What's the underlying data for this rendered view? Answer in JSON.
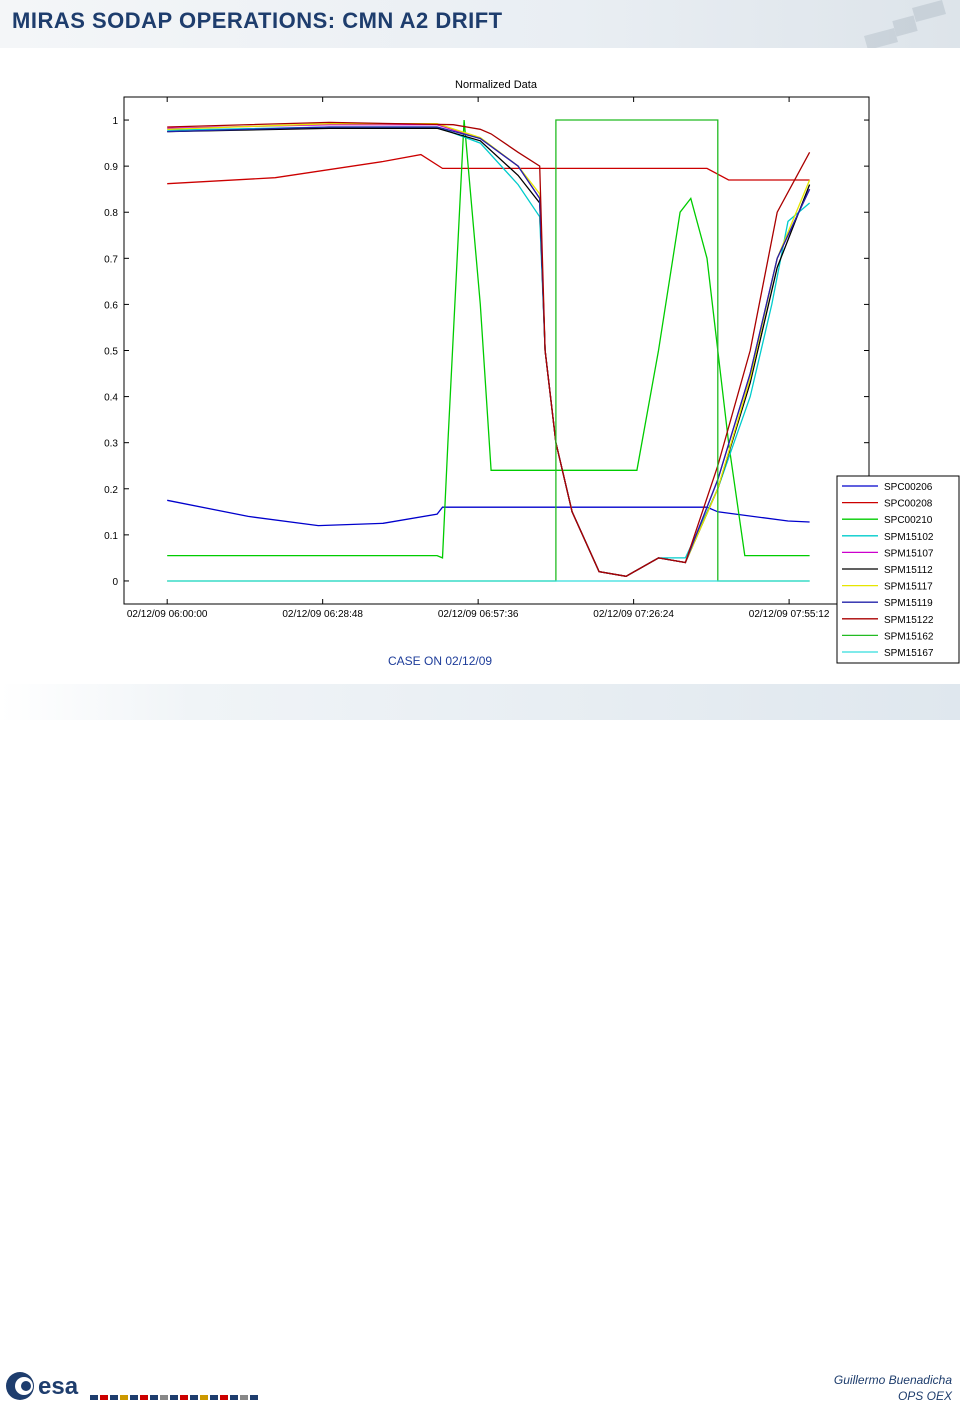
{
  "slide": {
    "title": "MIRAS SODAP OPERATIONS: CMN A2 DRIFT",
    "case_label": "CASE ON 02/12/09",
    "author": "Guillermo Buenadicha",
    "department": "OPS OEX",
    "logo_text": "esa"
  },
  "chart_data": {
    "type": "line",
    "title": "Normalized Data",
    "xlabel": "",
    "ylabel": "",
    "ylim": [
      -0.05,
      1.05
    ],
    "xlim": [
      "02/12/09 05:52:00",
      "02/12/09 08:10:00"
    ],
    "xticks": [
      "02/12/09 06:00:00",
      "02/12/09 06:28:48",
      "02/12/09 06:57:36",
      "02/12/09 07:26:24",
      "02/12/09 07:55:12"
    ],
    "yticks": [
      "0",
      "0.1",
      "0.2",
      "0.3",
      "0.4",
      "0.5",
      "0.6",
      "0.7",
      "0.8",
      "0.9",
      "1"
    ],
    "grid": false,
    "legend_position": "bottom-right",
    "series": [
      {
        "name": "SPC00206",
        "color": "#0000cc",
        "points": [
          [
            "06:00:00",
            0.175
          ],
          [
            "06:15:00",
            0.14
          ],
          [
            "06:28:00",
            0.12
          ],
          [
            "06:40:00",
            0.125
          ],
          [
            "06:50:00",
            0.145
          ],
          [
            "06:51:00",
            0.16
          ],
          [
            "07:40:00",
            0.16
          ],
          [
            "07:42:00",
            0.15
          ],
          [
            "07:55:00",
            0.13
          ],
          [
            "07:59:00",
            0.128
          ]
        ]
      },
      {
        "name": "SPC00208",
        "color": "#cc0000",
        "points": [
          [
            "06:00:00",
            0.862
          ],
          [
            "06:20:00",
            0.875
          ],
          [
            "06:40:00",
            0.91
          ],
          [
            "06:47:00",
            0.925
          ],
          [
            "06:51:00",
            0.895
          ],
          [
            "07:00:00",
            0.895
          ],
          [
            "07:20:00",
            0.895
          ],
          [
            "07:40:00",
            0.895
          ],
          [
            "07:44:00",
            0.87
          ],
          [
            "07:59:00",
            0.87
          ]
        ]
      },
      {
        "name": "SPC00210",
        "color": "#00cc00",
        "points": [
          [
            "06:00:00",
            0.055
          ],
          [
            "06:30:00",
            0.055
          ],
          [
            "06:50:00",
            0.055
          ],
          [
            "06:51:00",
            0.05
          ],
          [
            "06:52:00",
            0.3
          ],
          [
            "06:55:00",
            1.0
          ],
          [
            "06:58:00",
            0.6
          ],
          [
            "07:00:00",
            0.24
          ],
          [
            "07:15:00",
            0.24
          ],
          [
            "07:27:00",
            0.24
          ],
          [
            "07:31:00",
            0.5
          ],
          [
            "07:35:00",
            0.8
          ],
          [
            "07:37:00",
            0.83
          ],
          [
            "07:40:00",
            0.7
          ],
          [
            "07:44:00",
            0.3
          ],
          [
            "07:47:00",
            0.055
          ],
          [
            "07:59:00",
            0.055
          ]
        ]
      },
      {
        "name": "SPM15102",
        "color": "#00cccc",
        "points": [
          [
            "06:00:00",
            0.978
          ],
          [
            "06:30:00",
            0.985
          ],
          [
            "06:50:00",
            0.985
          ],
          [
            "06:58:00",
            0.95
          ],
          [
            "07:05:00",
            0.86
          ],
          [
            "07:09:00",
            0.79
          ],
          [
            "07:10:00",
            0.5
          ],
          [
            "07:12:00",
            0.3
          ],
          [
            "07:15:00",
            0.15
          ],
          [
            "07:20:00",
            0.02
          ],
          [
            "07:25:00",
            0.01
          ],
          [
            "07:31:00",
            0.05
          ],
          [
            "07:36:00",
            0.05
          ],
          [
            "07:42:00",
            0.2
          ],
          [
            "07:48:00",
            0.4
          ],
          [
            "07:52:00",
            0.6
          ],
          [
            "07:55:00",
            0.78
          ],
          [
            "07:59:00",
            0.82
          ]
        ]
      },
      {
        "name": "SPM15107",
        "color": "#cc00cc",
        "points": [
          [
            "06:00:00",
            0.982
          ],
          [
            "06:30:00",
            0.99
          ],
          [
            "06:50:00",
            0.99
          ],
          [
            "06:58:00",
            0.96
          ],
          [
            "07:05:00",
            0.9
          ],
          [
            "07:09:00",
            0.83
          ],
          [
            "07:10:00",
            0.5
          ],
          [
            "07:12:00",
            0.3
          ],
          [
            "07:15:00",
            0.15
          ],
          [
            "07:20:00",
            0.02
          ],
          [
            "07:25:00",
            0.01
          ],
          [
            "07:31:00",
            0.05
          ],
          [
            "07:36:00",
            0.04
          ],
          [
            "07:42:00",
            0.22
          ],
          [
            "07:48:00",
            0.45
          ],
          [
            "07:53:00",
            0.7
          ],
          [
            "07:59:00",
            0.85
          ]
        ]
      },
      {
        "name": "SPM15112",
        "color": "#000000",
        "points": [
          [
            "06:00:00",
            0.975
          ],
          [
            "06:30:00",
            0.982
          ],
          [
            "06:50:00",
            0.982
          ],
          [
            "06:58:00",
            0.955
          ],
          [
            "07:05:00",
            0.88
          ],
          [
            "07:09:00",
            0.82
          ],
          [
            "07:10:00",
            0.5
          ],
          [
            "07:12:00",
            0.3
          ],
          [
            "07:15:00",
            0.15
          ],
          [
            "07:20:00",
            0.02
          ],
          [
            "07:25:00",
            0.01
          ],
          [
            "07:31:00",
            0.05
          ],
          [
            "07:36:00",
            0.04
          ],
          [
            "07:42:00",
            0.2
          ],
          [
            "07:48:00",
            0.43
          ],
          [
            "07:53:00",
            0.68
          ],
          [
            "07:59:00",
            0.86
          ]
        ]
      },
      {
        "name": "SPM15117",
        "color": "#e6e600",
        "points": [
          [
            "06:00:00",
            0.98
          ],
          [
            "06:30:00",
            0.992
          ],
          [
            "06:50:00",
            0.992
          ],
          [
            "06:58:00",
            0.962
          ],
          [
            "07:05:00",
            0.9
          ],
          [
            "07:09:00",
            0.84
          ],
          [
            "07:10:00",
            0.5
          ],
          [
            "07:12:00",
            0.3
          ],
          [
            "07:15:00",
            0.15
          ],
          [
            "07:20:00",
            0.02
          ],
          [
            "07:25:00",
            0.01
          ],
          [
            "07:31:00",
            0.05
          ],
          [
            "07:36:00",
            0.04
          ],
          [
            "07:42:00",
            0.2
          ],
          [
            "07:48:00",
            0.44
          ],
          [
            "07:53:00",
            0.7
          ],
          [
            "07:59:00",
            0.87
          ]
        ]
      },
      {
        "name": "SPM15119",
        "color": "#2222aa",
        "points": [
          [
            "06:00:00",
            0.975
          ],
          [
            "06:30:00",
            0.985
          ],
          [
            "06:50:00",
            0.985
          ],
          [
            "06:58:00",
            0.96
          ],
          [
            "07:05:00",
            0.9
          ],
          [
            "07:09:00",
            0.83
          ],
          [
            "07:10:00",
            0.5
          ],
          [
            "07:12:00",
            0.3
          ],
          [
            "07:15:00",
            0.15
          ],
          [
            "07:20:00",
            0.02
          ],
          [
            "07:25:00",
            0.01
          ],
          [
            "07:31:00",
            0.05
          ],
          [
            "07:36:00",
            0.04
          ],
          [
            "07:42:00",
            0.22
          ],
          [
            "07:48:00",
            0.45
          ],
          [
            "07:53:00",
            0.7
          ],
          [
            "07:59:00",
            0.85
          ]
        ]
      },
      {
        "name": "SPM15122",
        "color": "#aa0000",
        "points": [
          [
            "06:00:00",
            0.985
          ],
          [
            "06:30:00",
            0.995
          ],
          [
            "06:53:00",
            0.99
          ],
          [
            "06:58:00",
            0.98
          ],
          [
            "07:00:00",
            0.97
          ],
          [
            "07:05:00",
            0.93
          ],
          [
            "07:09:00",
            0.9
          ],
          [
            "07:10:00",
            0.5
          ],
          [
            "07:12:00",
            0.3
          ],
          [
            "07:15:00",
            0.15
          ],
          [
            "07:20:00",
            0.02
          ],
          [
            "07:25:00",
            0.01
          ],
          [
            "07:31:00",
            0.05
          ],
          [
            "07:36:00",
            0.04
          ],
          [
            "07:42:00",
            0.25
          ],
          [
            "07:48:00",
            0.5
          ],
          [
            "07:53:00",
            0.8
          ],
          [
            "07:59:00",
            0.93
          ]
        ]
      },
      {
        "name": "SPM15162",
        "color": "#22bb22",
        "points": [
          [
            "06:00:00",
            0.0
          ],
          [
            "06:50:00",
            0.0
          ],
          [
            "07:12:00",
            0.0
          ],
          [
            "07:12:00",
            1.0
          ],
          [
            "07:42:00",
            1.0
          ],
          [
            "07:42:00",
            0.0
          ],
          [
            "07:59:00",
            0.0
          ]
        ]
      },
      {
        "name": "SPM15167",
        "color": "#33dddd",
        "points": [
          [
            "06:00:00",
            0.0
          ],
          [
            "06:30:00",
            0.0
          ],
          [
            "07:00:00",
            0.0
          ],
          [
            "07:30:00",
            0.0
          ],
          [
            "07:59:00",
            0.0
          ]
        ]
      }
    ]
  }
}
